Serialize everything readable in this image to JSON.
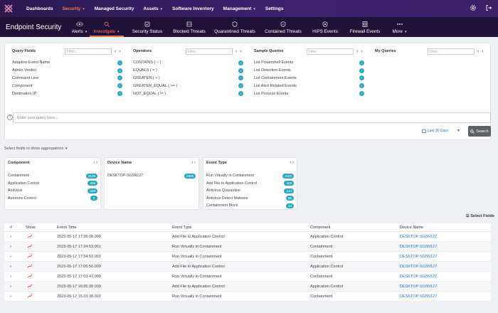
{
  "topnav": {
    "items": [
      {
        "label": "Dashboards",
        "active": false,
        "caret": false
      },
      {
        "label": "Security",
        "active": true,
        "caret": true
      },
      {
        "label": "Managed Security",
        "active": false,
        "caret": false
      },
      {
        "label": "Assets",
        "active": false,
        "caret": true
      },
      {
        "label": "Software Inventory",
        "active": false,
        "caret": false
      },
      {
        "label": "Management",
        "active": false,
        "caret": true
      },
      {
        "label": "Settings",
        "active": false,
        "caret": false
      }
    ],
    "accent_color": "#f27a5c"
  },
  "subnav": {
    "title": "Endpoint Security",
    "tabs": [
      {
        "label": "Alerts",
        "icon": "alerts-icon",
        "caret": true,
        "active": false
      },
      {
        "label": "Investigate",
        "icon": "investigate-icon",
        "caret": true,
        "active": true
      },
      {
        "label": "Security Status",
        "icon": "security-status-icon",
        "caret": false,
        "active": false
      },
      {
        "label": "Blocked Threats",
        "icon": "blocked-threats-icon",
        "caret": false,
        "active": false
      },
      {
        "label": "Quarantined Threats",
        "icon": "quarantined-threats-icon",
        "caret": false,
        "active": false
      },
      {
        "label": "Contained Threats",
        "icon": "contained-threats-icon",
        "caret": false,
        "active": false
      },
      {
        "label": "HIPS Events",
        "icon": "hips-events-icon",
        "caret": false,
        "active": false
      },
      {
        "label": "Firewall Events",
        "icon": "firewall-events-icon",
        "caret": false,
        "active": false
      },
      {
        "label": "More",
        "icon": "more-icon",
        "caret": true,
        "active": false
      }
    ]
  },
  "query_panel": {
    "filter_placeholder": "Filter...",
    "columns": [
      {
        "title": "Query Fields",
        "items": [
          "Adaptive Event Name",
          "Admin Verdict",
          "Command Line",
          "Component",
          "Destination IP"
        ]
      },
      {
        "title": "Operators",
        "items": [
          "CONTAINS ( ~ )",
          "EQUALS ( = )",
          "GREATER ( > )",
          "GREATER_EQUAL ( >= )",
          "NOT_EQUAL ( != )"
        ]
      },
      {
        "title": "Sample Queries",
        "items": [
          "List Powershell Events",
          "List Detection Events",
          "List Containment Events",
          "List Alert Related Events",
          "List Process Events"
        ]
      },
      {
        "title": "My Queries",
        "items": []
      }
    ],
    "query_placeholder": "Enter your query here...",
    "date_range": "Last 30 Days",
    "search_label": "Search"
  },
  "aggregations": {
    "label": "Select fields to show aggregations",
    "cards": [
      {
        "title": "Component",
        "rows": [
          {
            "name": "Containment",
            "count": "2149"
          },
          {
            "name": "Application Control",
            "count": "428"
          },
          {
            "name": "Antivirus",
            "count": "229"
          },
          {
            "name": "Autoruns Control",
            "count": "3"
          }
        ]
      },
      {
        "title": "Device Name",
        "rows": [
          {
            "name": "DESKTOP-SG5N127",
            "count": "2809"
          }
        ]
      },
      {
        "title": "Event Type",
        "rows": [
          {
            "name": "Run Virtually in Containment",
            "count": "2115"
          },
          {
            "name": "Add File to Application Control",
            "count": "428"
          },
          {
            "name": "Antivirus Quarantine",
            "count": "143"
          },
          {
            "name": "Antivirus Detect Malware",
            "count": "86"
          },
          {
            "name": "Containment Block",
            "count": "34"
          }
        ]
      }
    ]
  },
  "table": {
    "select_fields_label": "Select Fields",
    "headers": [
      "#",
      "Show",
      "Event Time",
      "Event Type",
      "Component",
      "Device Name"
    ],
    "rows": [
      {
        "time": "2023-05-17 17:36:08.000",
        "type": "Add File to Application Control",
        "component": "Application Control",
        "device": "DESKTOP-SG5N127"
      },
      {
        "time": "2023-05-17 17:34:53.001",
        "type": "Run Virtually in Containment",
        "component": "Containment",
        "device": "DESKTOP-SG5N127"
      },
      {
        "time": "2023-05-17 17:34:53.000",
        "type": "Run Virtually in Containment",
        "component": "Containment",
        "device": "DESKTOP-SG5N127"
      },
      {
        "time": "2023-05-17 17:05:50.000",
        "type": "Add File to Application Control",
        "component": "Application Control",
        "device": "DESKTOP-SG5N127"
      },
      {
        "time": "2023-05-17 17:03:47.000",
        "type": "Run Virtually in Containment",
        "component": "Containment",
        "device": "DESKTOP-SG5N127"
      },
      {
        "time": "2023-05-17 16:35:38.000",
        "type": "Add File to Application Control",
        "component": "Application Control",
        "device": "DESKTOP-SG5N127"
      },
      {
        "time": "2023-05-17 16:33:38.000",
        "type": "Run Virtually in Containment",
        "component": "Containment",
        "device": "DESKTOP-SG5N127"
      }
    ]
  }
}
